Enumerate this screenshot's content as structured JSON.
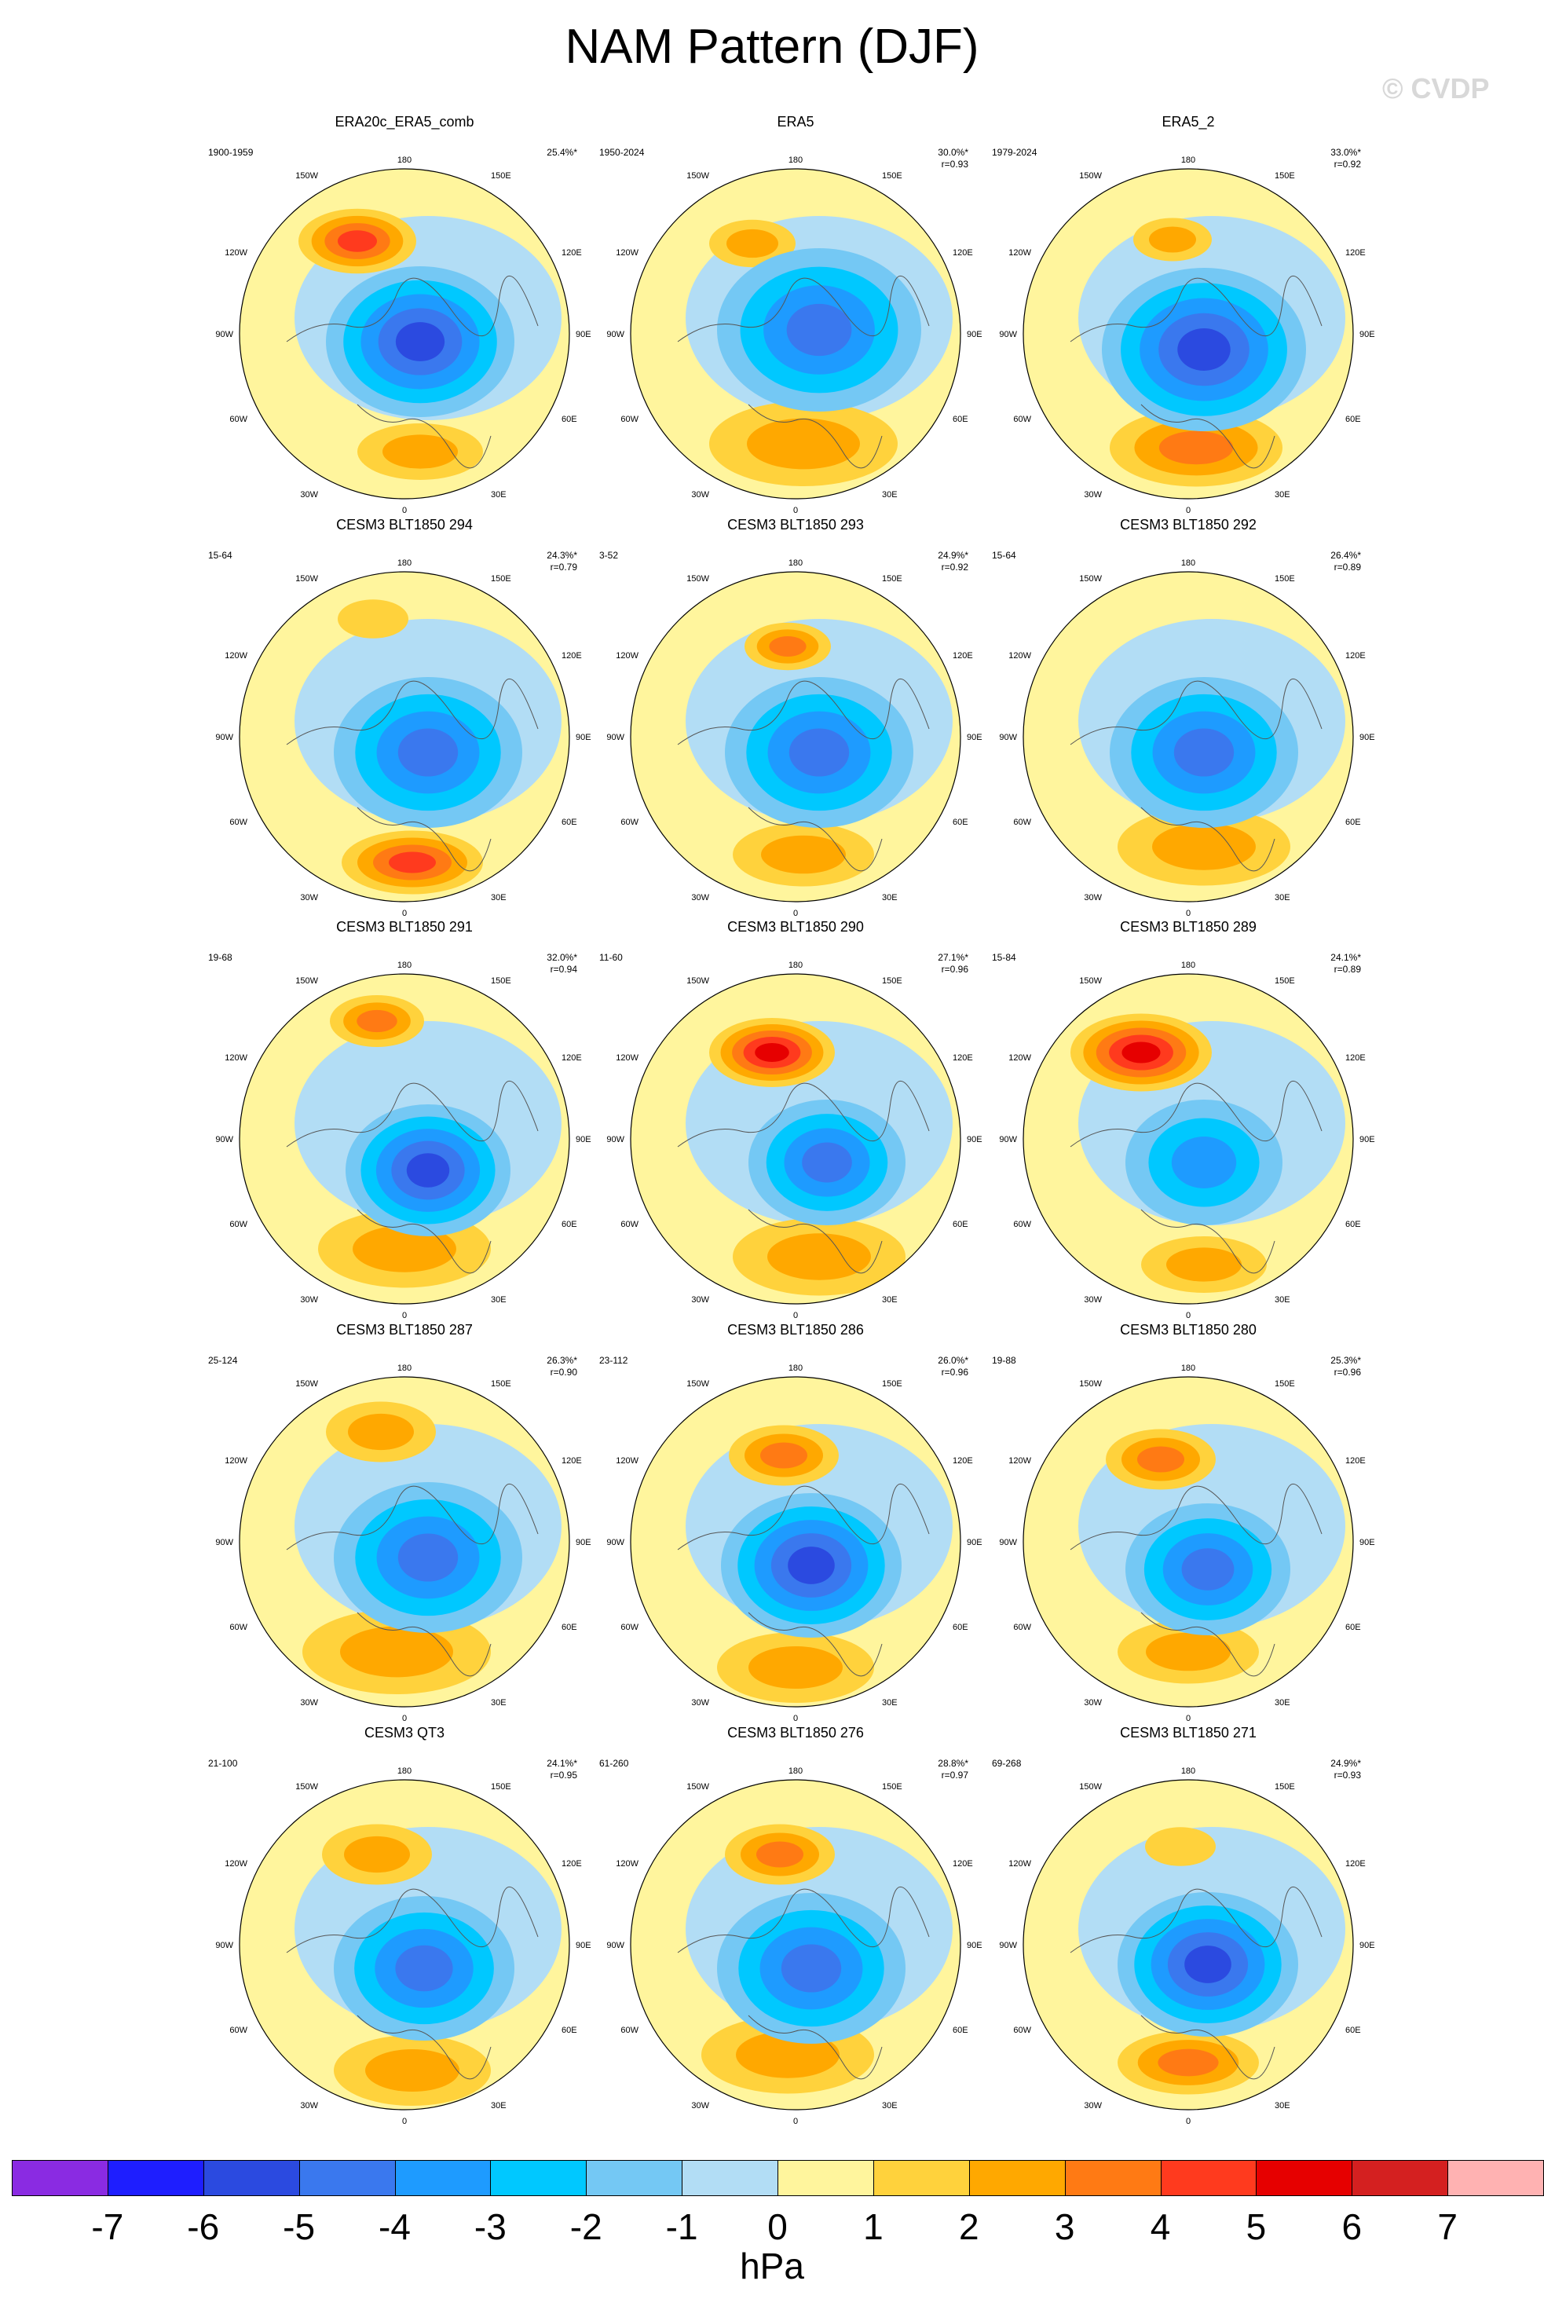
{
  "title": "NAM Pattern (DJF)",
  "watermark": "© CVDP",
  "units": "hPa",
  "colorbar": {
    "labels": [
      "-7",
      "-6",
      "-5",
      "-4",
      "-3",
      "-2",
      "-1",
      "0",
      "1",
      "2",
      "3",
      "4",
      "5",
      "6",
      "7"
    ],
    "colors": [
      "#8a2be2",
      "#1e1eff",
      "#2b4ae0",
      "#3a78ee",
      "#1e9bff",
      "#00c8ff",
      "#74c8f4",
      "#b2ddf5",
      "#fff59d",
      "#ffd23c",
      "#ffa800",
      "#ff7a14",
      "#ff3a1e",
      "#e60000",
      "#d42020",
      "#ffb2b2"
    ]
  },
  "grid_labels": {
    "top": "180",
    "bottom": "0",
    "left": "90W",
    "right": "90E",
    "ul1": "150W",
    "ul2": "120W",
    "ur1": "150E",
    "ur2": "120E",
    "ll1": "60W",
    "ll2": "30W",
    "lr1": "60E",
    "lr2": "30E"
  },
  "panels": [
    {
      "title": "ERA20c_ERA5_comb",
      "years": "1900-1959",
      "pct": "25.4%*",
      "r": ""
    },
    {
      "title": "ERA5",
      "years": "1950-2024",
      "pct": "30.0%*",
      "r": "r=0.93"
    },
    {
      "title": "ERA5_2",
      "years": "1979-2024",
      "pct": "33.0%*",
      "r": "r=0.92"
    },
    {
      "title": "CESM3 BLT1850 294",
      "years": "15-64",
      "pct": "24.3%*",
      "r": "r=0.79"
    },
    {
      "title": "CESM3 BLT1850 293",
      "years": "3-52",
      "pct": "24.9%*",
      "r": "r=0.92"
    },
    {
      "title": "CESM3 BLT1850 292",
      "years": "15-64",
      "pct": "26.4%*",
      "r": "r=0.89"
    },
    {
      "title": "CESM3 BLT1850 291",
      "years": "19-68",
      "pct": "32.0%*",
      "r": "r=0.94"
    },
    {
      "title": "CESM3 BLT1850 290",
      "years": "11-60",
      "pct": "27.1%*",
      "r": "r=0.96"
    },
    {
      "title": "CESM3 BLT1850 289",
      "years": "15-84",
      "pct": "24.1%*",
      "r": "r=0.89"
    },
    {
      "title": "CESM3 BLT1850 287",
      "years": "25-124",
      "pct": "26.3%*",
      "r": "r=0.90"
    },
    {
      "title": "CESM3 BLT1850 286",
      "years": "23-112",
      "pct": "26.0%*",
      "r": "r=0.96"
    },
    {
      "title": "CESM3 BLT1850 280",
      "years": "19-88",
      "pct": "25.3%*",
      "r": "r=0.96"
    },
    {
      "title": "CESM3 QT3",
      "years": "21-100",
      "pct": "24.1%*",
      "r": "r=0.95"
    },
    {
      "title": "CESM3 BLT1850 276",
      "years": "61-260",
      "pct": "28.8%*",
      "r": "r=0.97"
    },
    {
      "title": "CESM3 BLT1850 271",
      "years": "69-268",
      "pct": "24.9%*",
      "r": "r=0.93"
    }
  ]
}
